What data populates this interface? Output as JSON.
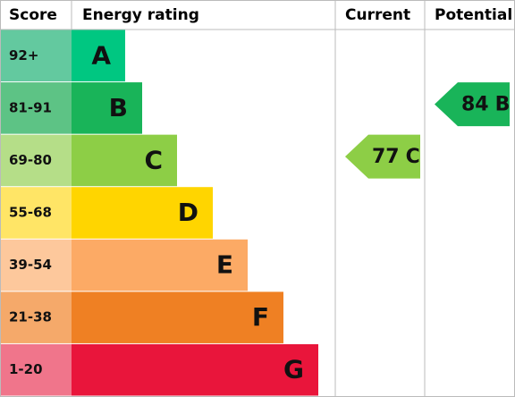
{
  "header": {
    "score": "Score",
    "rating": "Energy rating",
    "current": "Current",
    "potential": "Potential"
  },
  "bands": [
    {
      "score": "92+",
      "letter": "A",
      "color": "#00c781",
      "score_color": "#63c99f"
    },
    {
      "score": "81-91",
      "letter": "B",
      "color": "#19b459",
      "score_color": "#5dc385"
    },
    {
      "score": "69-80",
      "letter": "C",
      "color": "#8dce46",
      "score_color": "#b5de88"
    },
    {
      "score": "55-68",
      "letter": "D",
      "color": "#ffd500",
      "score_color": "#ffe566"
    },
    {
      "score": "39-54",
      "letter": "E",
      "color": "#fcaa65",
      "score_color": "#fdc89c"
    },
    {
      "score": "21-38",
      "letter": "F",
      "color": "#ef8023",
      "score_color": "#f5a96a"
    },
    {
      "score": "1-20",
      "letter": "G",
      "color": "#e9153b",
      "score_color": "#f0758b"
    }
  ],
  "current": {
    "value": 77,
    "letter": "C"
  },
  "potential": {
    "value": 84,
    "letter": "B"
  }
}
